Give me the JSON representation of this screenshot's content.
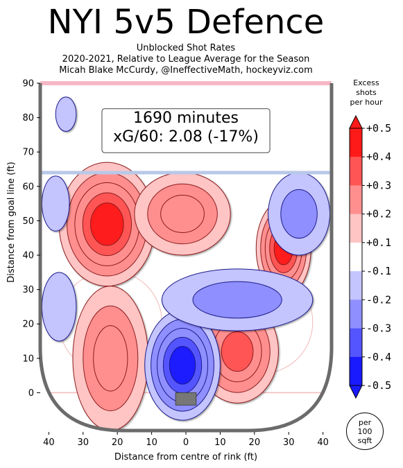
{
  "chart_data": {
    "type": "heatmap",
    "title": "NYI 5v5 Defence",
    "subtitle_lines": [
      "Unblocked Shot Rates",
      "2020-2021, Relative to League Average for the Season",
      "Micah Blake McCurdy, @IneffectiveMath, hockeyviz.com"
    ],
    "xlabel": "Distance from centre of rink (ft)",
    "ylabel": "Distance from goal line (ft)",
    "x_tick_labels": [
      "40",
      "30",
      "20",
      "10",
      "0",
      "10",
      "20",
      "30",
      "40"
    ],
    "x_tick_values": [
      -40,
      -30,
      -20,
      -10,
      0,
      10,
      20,
      30,
      40
    ],
    "y_ticks": [
      0,
      10,
      20,
      30,
      40,
      50,
      60,
      70,
      80,
      90
    ],
    "xlim": [
      -42.5,
      42.5
    ],
    "ylim": [
      -11,
      90
    ],
    "annotation_lines": [
      "1690 minutes",
      "xG/60: 2.08 (-17%)"
    ],
    "colorbar": {
      "title_lines": [
        "Excess",
        "shots",
        "per hour"
      ],
      "range": [
        -0.5,
        0.5
      ],
      "tick_labels": [
        "+0.5",
        "+0.4",
        "+0.3",
        "+0.2",
        "+0.1",
        "-0.1",
        "-0.2",
        "-0.3",
        "-0.4",
        "-0.5"
      ],
      "tick_values": [
        0.5,
        0.4,
        0.3,
        0.2,
        0.1,
        -0.1,
        -0.2,
        -0.3,
        -0.4,
        -0.5
      ],
      "colors": [
        "#ff1a1a",
        "#ff5555",
        "#ff8f8f",
        "#ffc4c4",
        "#ffffff",
        "#c4c4ff",
        "#8f8fff",
        "#5555ff",
        "#1a1aff"
      ]
    },
    "unit_badge_lines": [
      "per",
      "100",
      "sqft"
    ],
    "regions": [
      {
        "x": -23,
        "y": 49,
        "value": 0.5
      },
      {
        "x": -1,
        "y": 52,
        "value": 0.3
      },
      {
        "x": 28.5,
        "y": 42,
        "value": 0.5
      },
      {
        "x": 15,
        "y": 12,
        "value": 0.4
      },
      {
        "x": -22,
        "y": 10,
        "value": 0.3
      },
      {
        "x": -1,
        "y": 8,
        "value": -0.5
      },
      {
        "x": 33,
        "y": 52,
        "value": -0.2
      },
      {
        "x": -35,
        "y": 81,
        "value": -0.1
      },
      {
        "x": -38,
        "y": 55,
        "value": -0.1
      },
      {
        "x": -37,
        "y": 25,
        "value": -0.1
      },
      {
        "x": 15,
        "y": 27,
        "value": -0.2
      }
    ]
  }
}
